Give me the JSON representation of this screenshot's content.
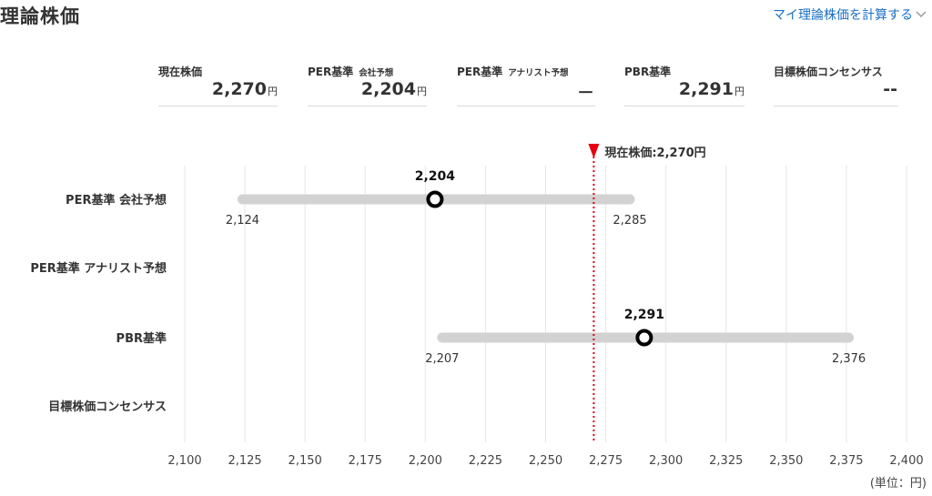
{
  "header": {
    "title": "理論株価",
    "calc_link": "マイ理論株価を計算する"
  },
  "summary": [
    {
      "label": "現在株価",
      "sub": "",
      "value": "2,270",
      "unit": "円"
    },
    {
      "label": "PER基準",
      "sub": "会社予想",
      "value": "2,204",
      "unit": "円"
    },
    {
      "label": "PER基準",
      "sub": "アナリスト予想",
      "value": "－",
      "unit": ""
    },
    {
      "label": "PBR基準",
      "sub": "",
      "value": "2,291",
      "unit": "円"
    },
    {
      "label": "目標株価コンセンサス",
      "sub": "",
      "value": "--",
      "unit": ""
    }
  ],
  "chart_data": {
    "type": "range",
    "current_price": {
      "value": 2270,
      "label": "現在株価:2,270円",
      "color": "#e60012"
    },
    "categories": [
      "PER基準 会社予想",
      "PER基準 アナリスト予想",
      "PBR基準",
      "目標株価コンセンサス"
    ],
    "ranges": [
      {
        "category": "PER基準 会社予想",
        "low": 2124,
        "value": 2204,
        "high": 2285,
        "low_label": "2,124",
        "value_label": "2,204",
        "high_label": "2,285"
      },
      {
        "category": "PBR基準",
        "low": 2207,
        "value": 2291,
        "high": 2376,
        "low_label": "2,207",
        "value_label": "2,291",
        "high_label": "2,376"
      }
    ],
    "xlim": [
      2100,
      2400
    ],
    "xticks": [
      2100,
      2125,
      2150,
      2175,
      2200,
      2225,
      2250,
      2275,
      2300,
      2325,
      2350,
      2375,
      2400
    ],
    "xtick_labels": [
      "2,100",
      "2,125",
      "2,150",
      "2,175",
      "2,200",
      "2,225",
      "2,250",
      "2,275",
      "2,300",
      "2,325",
      "2,350",
      "2,375",
      "2,400"
    ],
    "unit_label": "(単位：円)",
    "grid": true,
    "colors": {
      "bar": "#d2d2d2",
      "marker": "#000000",
      "grid": "#e6e6e6",
      "current_line": "#e60012"
    }
  }
}
